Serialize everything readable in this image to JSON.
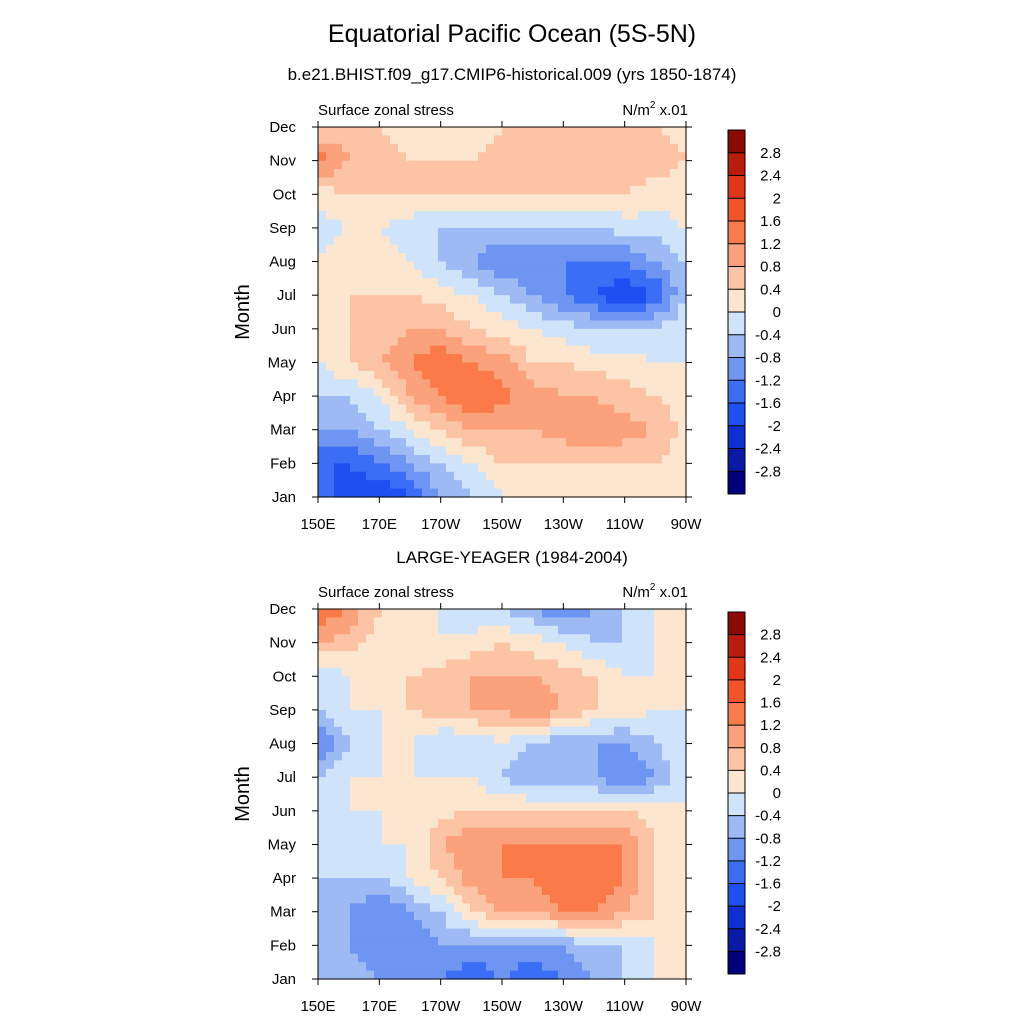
{
  "figure": {
    "title": "Equatorial Pacific Ocean (5S-5N)",
    "subtitle": "b.e21.BHIST.f09_g17.CMIP6-historical.009 (yrs 1850-1874)"
  },
  "chart_data": [
    {
      "type": "heatmap",
      "panel_title": "",
      "left_label": "Surface zonal stress",
      "units": "N/m",
      "units_sup": "2",
      "units_scale": " x.01",
      "ylabel": "Month",
      "xlabel": "",
      "x": [
        "150E",
        "170E",
        "170W",
        "150W",
        "130W",
        "110W",
        "90W"
      ],
      "y": [
        "Jan",
        "Feb",
        "Mar",
        "Apr",
        "May",
        "Jun",
        "Jul",
        "Aug",
        "Sep",
        "Oct",
        "Nov",
        "Dec"
      ],
      "z": [
        [
          -1.2,
          -2.0,
          -2.0,
          -1.6,
          -0.8,
          -0.4,
          0.0,
          0.0,
          0.0,
          0.2,
          0.2,
          0.2,
          0.2
        ],
        [
          -1.6,
          -1.6,
          -1.2,
          -0.8,
          -0.4,
          0.0,
          0.4,
          0.4,
          0.4,
          0.4,
          0.4,
          0.4,
          0.2
        ],
        [
          -0.8,
          -0.8,
          -0.4,
          0.0,
          0.4,
          0.8,
          0.8,
          0.8,
          1.0,
          1.2,
          1.0,
          0.8,
          0.2
        ],
        [
          -0.4,
          -0.4,
          0.0,
          0.8,
          1.2,
          1.6,
          1.4,
          1.0,
          0.8,
          0.8,
          0.6,
          0.4,
          0.2
        ],
        [
          0.0,
          0.4,
          0.8,
          1.2,
          1.6,
          1.2,
          1.0,
          0.4,
          0.4,
          0.2,
          0.2,
          0.0,
          0.0
        ],
        [
          0.2,
          0.4,
          0.4,
          0.8,
          0.8,
          0.4,
          0.2,
          0.0,
          -0.2,
          -0.4,
          -0.4,
          -0.4,
          0.0
        ],
        [
          0.2,
          0.4,
          0.4,
          0.4,
          0.2,
          0.0,
          -0.4,
          -0.8,
          -1.2,
          -1.6,
          -2.0,
          -1.6,
          -0.4
        ],
        [
          0.0,
          0.2,
          0.2,
          0.0,
          -0.4,
          -0.8,
          -1.2,
          -1.2,
          -1.2,
          -1.2,
          -1.2,
          -0.8,
          -0.4
        ],
        [
          -0.2,
          0.0,
          0.0,
          -0.2,
          -0.4,
          -0.4,
          -0.4,
          -0.4,
          -0.4,
          -0.4,
          -0.2,
          -0.2,
          0.0
        ],
        [
          0.2,
          0.4,
          0.4,
          0.4,
          0.4,
          0.4,
          0.4,
          0.4,
          0.4,
          0.4,
          0.4,
          0.2,
          0.2
        ],
        [
          1.4,
          0.8,
          0.6,
          0.4,
          0.4,
          0.4,
          0.6,
          0.6,
          0.8,
          0.8,
          0.8,
          0.6,
          0.4
        ],
        [
          0.4,
          0.6,
          0.4,
          0.2,
          0.2,
          0.2,
          0.4,
          0.4,
          0.4,
          0.6,
          0.6,
          0.4,
          0.2
        ]
      ]
    },
    {
      "type": "heatmap",
      "panel_title": "LARGE-YEAGER (1984-2004)",
      "left_label": "Surface zonal stress",
      "units": "N/m",
      "units_sup": "2",
      "units_scale": " x.01",
      "ylabel": "Month",
      "xlabel": "",
      "x": [
        "150E",
        "170E",
        "170W",
        "150W",
        "130W",
        "110W",
        "90W"
      ],
      "y": [
        "Jan",
        "Feb",
        "Mar",
        "Apr",
        "May",
        "Jun",
        "Jul",
        "Aug",
        "Sep",
        "Oct",
        "Nov",
        "Dec"
      ],
      "z": [
        [
          -0.4,
          -0.4,
          -0.8,
          -0.8,
          -1.2,
          -1.6,
          -1.2,
          -1.6,
          -1.2,
          -0.8,
          -0.4,
          0.0,
          0.0
        ],
        [
          -0.4,
          -0.8,
          -1.2,
          -1.2,
          -0.8,
          -0.8,
          -0.8,
          -0.8,
          -0.8,
          -0.4,
          -0.4,
          0.0,
          0.0
        ],
        [
          -0.4,
          -0.8,
          -1.2,
          -0.8,
          -0.4,
          0.4,
          0.8,
          0.8,
          1.2,
          1.2,
          0.8,
          0.4,
          0.0
        ],
        [
          -0.4,
          -0.4,
          -0.4,
          0.0,
          0.4,
          1.0,
          1.2,
          1.2,
          1.6,
          1.6,
          1.2,
          0.4,
          0.0
        ],
        [
          -0.4,
          -0.4,
          0.0,
          0.0,
          0.8,
          1.2,
          1.2,
          1.2,
          1.2,
          1.2,
          1.2,
          0.4,
          0.0
        ],
        [
          -0.4,
          0.0,
          0.0,
          0.0,
          0.2,
          0.4,
          0.4,
          0.4,
          0.4,
          0.4,
          0.4,
          0.2,
          0.0
        ],
        [
          -0.4,
          0.0,
          0.0,
          0.0,
          0.0,
          0.0,
          -0.4,
          -0.8,
          -0.8,
          -0.8,
          -1.2,
          -0.8,
          0.0
        ],
        [
          -1.2,
          -0.4,
          0.0,
          0.0,
          -0.4,
          -0.4,
          0.0,
          -0.4,
          -0.8,
          -0.8,
          -0.8,
          -0.4,
          0.0
        ],
        [
          -0.4,
          0.0,
          0.0,
          0.4,
          0.6,
          0.8,
          0.8,
          1.2,
          0.8,
          0.4,
          0.2,
          0.0,
          0.0
        ],
        [
          -0.4,
          0.0,
          0.2,
          0.4,
          0.6,
          0.8,
          0.8,
          0.8,
          0.6,
          0.4,
          0.0,
          0.0,
          0.0
        ],
        [
          0.8,
          0.6,
          0.2,
          0.0,
          0.0,
          0.2,
          0.4,
          0.2,
          0.0,
          -0.4,
          -0.4,
          0.0,
          0.0
        ],
        [
          1.6,
          1.2,
          0.4,
          0.0,
          0.0,
          -0.4,
          -0.4,
          -0.8,
          -1.2,
          -0.8,
          -0.4,
          0.0,
          0.0
        ]
      ]
    }
  ],
  "colorbar": {
    "levels": [
      -3.2,
      -2.8,
      -2.4,
      -2.0,
      -1.6,
      -1.2,
      -0.8,
      -0.4,
      0.0,
      0.4,
      0.8,
      1.2,
      1.6,
      2.0,
      2.4,
      2.8,
      3.2
    ],
    "labels": [
      "-2.8",
      "-2.4",
      "-2",
      "-1.6",
      "-1.2",
      "-0.8",
      "-0.4",
      "0",
      "0.4",
      "0.8",
      "1.2",
      "1.6",
      "2",
      "2.4",
      "2.8"
    ],
    "colors": [
      "#00007f",
      "#0a1aa5",
      "#0f2fd0",
      "#1e4ff0",
      "#3b6ef5",
      "#6f95f2",
      "#9dbaf5",
      "#cfe3fb",
      "#fde6cf",
      "#fcc4a4",
      "#fba27c",
      "#fa7a4a",
      "#f2542a",
      "#e0361a",
      "#b81c0c",
      "#8b0b04"
    ]
  }
}
